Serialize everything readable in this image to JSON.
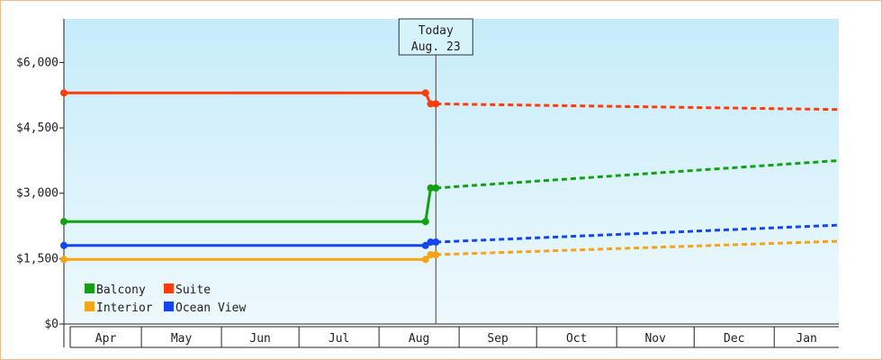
{
  "chart_data": {
    "type": "line",
    "x_axis_labels": [
      "Apr",
      "May",
      "Jun",
      "Jul",
      "Aug",
      "Sep",
      "Oct",
      "Nov",
      "Dec",
      "Jan"
    ],
    "y_ticks": [
      "$0",
      "$1,500",
      "$3,000",
      "$4,500",
      "$6,000"
    ],
    "ylim": [
      0,
      7000
    ],
    "xlim": [
      "2023-04-01",
      "2024-01-26"
    ],
    "grid": false,
    "legend_position": "bottom-left",
    "marker": {
      "date": "2023-08-23",
      "line1": "Today",
      "line2": "Aug. 23"
    },
    "series": [
      {
        "name": "Balcony",
        "color": "#14a014",
        "historical": [
          [
            "2023-04-01",
            2350
          ],
          [
            "2023-08-19",
            2350
          ],
          [
            "2023-08-21",
            3120
          ],
          [
            "2023-08-23",
            3120
          ]
        ],
        "forecast": [
          [
            "2023-08-23",
            3120
          ],
          [
            "2024-01-26",
            3750
          ]
        ]
      },
      {
        "name": "Suite",
        "color": "#ff3c0a",
        "historical": [
          [
            "2023-04-01",
            5300
          ],
          [
            "2023-08-19",
            5300
          ],
          [
            "2023-08-21",
            5050
          ],
          [
            "2023-08-23",
            5050
          ]
        ],
        "forecast": [
          [
            "2023-08-23",
            5050
          ],
          [
            "2024-01-26",
            4920
          ]
        ]
      },
      {
        "name": "Interior",
        "color": "#f7a315",
        "historical": [
          [
            "2023-04-01",
            1480
          ],
          [
            "2023-08-19",
            1480
          ],
          [
            "2023-08-21",
            1590
          ],
          [
            "2023-08-23",
            1590
          ]
        ],
        "forecast": [
          [
            "2023-08-23",
            1590
          ],
          [
            "2024-01-26",
            1900
          ]
        ]
      },
      {
        "name": "Ocean View",
        "color": "#1446f0",
        "historical": [
          [
            "2023-04-01",
            1800
          ],
          [
            "2023-08-19",
            1800
          ],
          [
            "2023-08-21",
            1880
          ],
          [
            "2023-08-23",
            1880
          ]
        ],
        "forecast": [
          [
            "2023-08-23",
            1880
          ],
          [
            "2024-01-26",
            2270
          ]
        ]
      }
    ]
  }
}
